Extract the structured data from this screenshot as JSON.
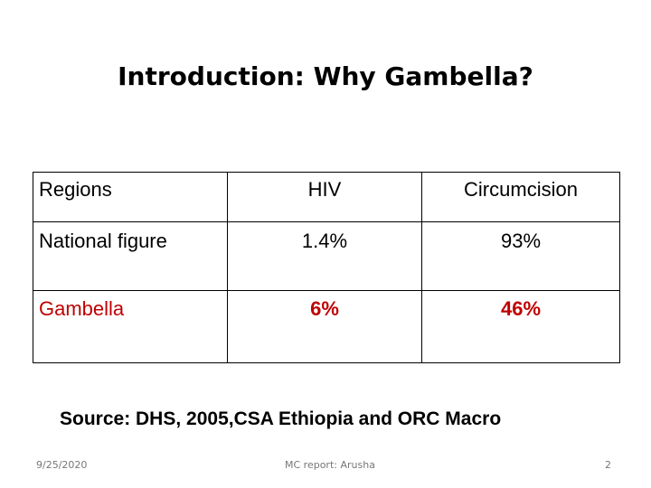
{
  "slide": {
    "title": "Introduction: Why Gambella?",
    "table": {
      "headers": [
        "Regions",
        "HIV",
        "Circumcision"
      ],
      "rows": [
        [
          "National figure",
          "1.4%",
          "93%"
        ],
        [
          "Gambella",
          "6%",
          "46%"
        ]
      ],
      "highlight_color": "#c00000"
    },
    "source": "Source: DHS, 2005,CSA Ethiopia and ORC Macro",
    "footer": {
      "date": "9/25/2020",
      "center": "MC report: Arusha",
      "page_number": "2"
    }
  }
}
